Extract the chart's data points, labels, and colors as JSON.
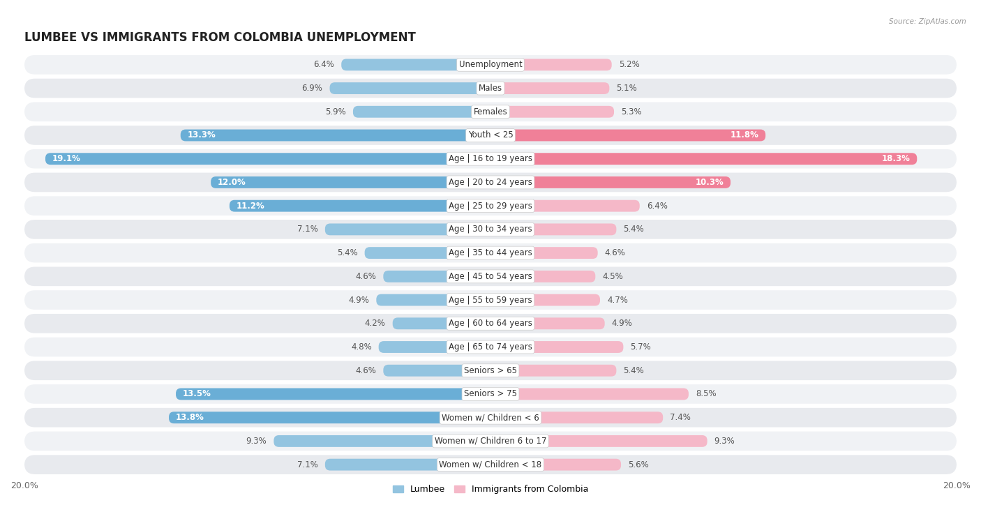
{
  "title": "LUMBEE VS IMMIGRANTS FROM COLOMBIA UNEMPLOYMENT",
  "source": "Source: ZipAtlas.com",
  "categories": [
    "Unemployment",
    "Males",
    "Females",
    "Youth < 25",
    "Age | 16 to 19 years",
    "Age | 20 to 24 years",
    "Age | 25 to 29 years",
    "Age | 30 to 34 years",
    "Age | 35 to 44 years",
    "Age | 45 to 54 years",
    "Age | 55 to 59 years",
    "Age | 60 to 64 years",
    "Age | 65 to 74 years",
    "Seniors > 65",
    "Seniors > 75",
    "Women w/ Children < 6",
    "Women w/ Children 6 to 17",
    "Women w/ Children < 18"
  ],
  "lumbee_values": [
    6.4,
    6.9,
    5.9,
    13.3,
    19.1,
    12.0,
    11.2,
    7.1,
    5.4,
    4.6,
    4.9,
    4.2,
    4.8,
    4.6,
    13.5,
    13.8,
    9.3,
    7.1
  ],
  "colombia_values": [
    5.2,
    5.1,
    5.3,
    11.8,
    18.3,
    10.3,
    6.4,
    5.4,
    4.6,
    4.5,
    4.7,
    4.9,
    5.7,
    5.4,
    8.5,
    7.4,
    9.3,
    5.6
  ],
  "lumbee_color_normal": "#93c4e0",
  "lumbee_color_bold": "#6aaed6",
  "colombia_color_normal": "#f5b8c8",
  "colombia_color_bold": "#f08098",
  "axis_max": 20.0,
  "background_color": "#ffffff",
  "row_color_odd": "#f0f2f5",
  "row_color_even": "#e8eaed",
  "label_fontsize": 8.5,
  "title_fontsize": 12,
  "legend_label_lumbee": "Lumbee",
  "legend_label_colombia": "Immigrants from Colombia",
  "bold_threshold": 10.0
}
